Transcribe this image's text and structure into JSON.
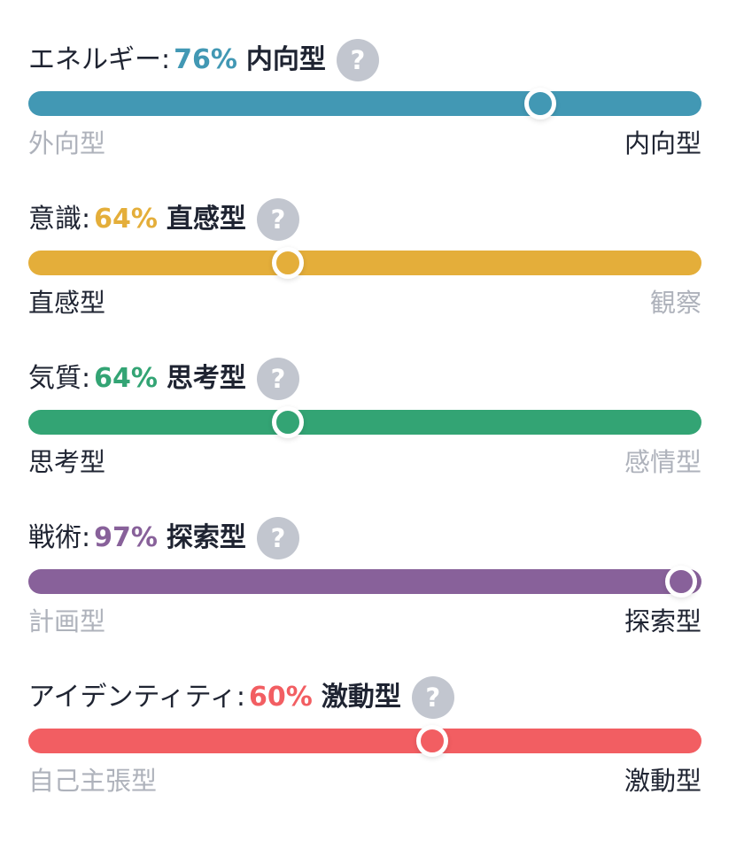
{
  "traits": [
    {
      "name": "エネルギー:",
      "percent": "76%",
      "result": "内向型",
      "help_label": "?",
      "left_pole": "外向型",
      "right_pole": "内向型",
      "active_pole": "right",
      "level_fraction": 0.76,
      "color": "#4298b4"
    },
    {
      "name": "意識:",
      "percent": "64%",
      "result": "直感型",
      "help_label": "?",
      "left_pole": "直感型",
      "right_pole": "観察",
      "active_pole": "left",
      "level_fraction": 0.385,
      "color": "#e4ae3a"
    },
    {
      "name": "気質:",
      "percent": "64%",
      "result": "思考型",
      "help_label": "?",
      "left_pole": "思考型",
      "right_pole": "感情型",
      "active_pole": "left",
      "level_fraction": 0.385,
      "color": "#33a474"
    },
    {
      "name": "戦術:",
      "percent": "97%",
      "result": "探索型",
      "help_label": "?",
      "left_pole": "計画型",
      "right_pole": "探索型",
      "active_pole": "right",
      "level_fraction": 0.97,
      "color": "#88619a"
    },
    {
      "name": "アイデンティティ:",
      "percent": "60%",
      "result": "激動型",
      "help_label": "?",
      "left_pole": "自己主張型",
      "right_pole": "激動型",
      "active_pole": "right",
      "level_fraction": 0.6,
      "color": "#f25e62"
    }
  ]
}
